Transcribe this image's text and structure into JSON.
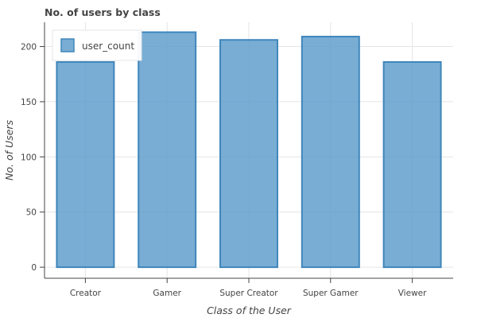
{
  "chart_data": {
    "type": "bar",
    "title": "No. of users by class",
    "xlabel": "Class of the User",
    "ylabel": "No. of Users",
    "categories": [
      "Creator",
      "Gamer",
      "Super Creator",
      "Super Gamer",
      "Viewer"
    ],
    "series": [
      {
        "name": "user_count",
        "values": [
          186,
          213,
          206,
          209,
          186
        ]
      }
    ],
    "ylim": [
      -10,
      222
    ],
    "yticks": [
      0,
      50,
      100,
      150,
      200
    ],
    "grid": true,
    "legend_position": "top-left",
    "colors": {
      "bar_fill": "#5b9bcb",
      "bar_stroke": "#3f86bb",
      "grid": "#e5e5e5",
      "axis": "#444444"
    }
  }
}
